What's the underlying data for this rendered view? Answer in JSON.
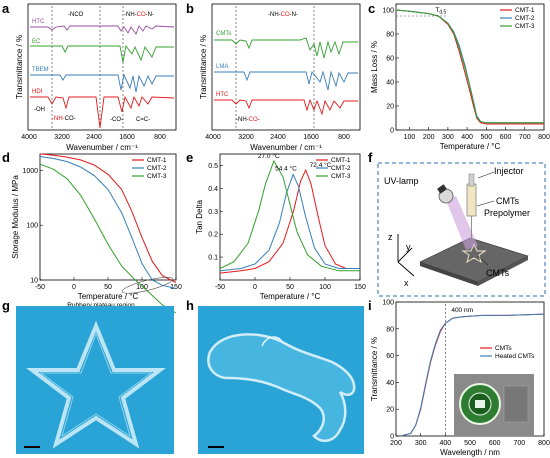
{
  "colors": {
    "cmt1": "#e41a1c",
    "cmt2": "#377eb8",
    "cmt3": "#33a02c",
    "purple": "#984ea3",
    "dash_border": "#2b6cb0",
    "water": "#2aa3d6"
  },
  "panels": {
    "a": {
      "label": "a"
    },
    "b": {
      "label": "b"
    },
    "c": {
      "label": "c"
    },
    "d": {
      "label": "d"
    },
    "e": {
      "label": "e"
    },
    "f": {
      "label": "f"
    },
    "g": {
      "label": "g"
    },
    "h": {
      "label": "h"
    },
    "i": {
      "label": "i"
    }
  },
  "chart_data": [
    {
      "id": "a",
      "type": "line",
      "xlabel": "Wavenumber / cm⁻¹",
      "ylabel": "Transmittance / %",
      "xlim": [
        4000,
        400
      ],
      "xticks": [
        4000,
        3200,
        2400,
        1600,
        800
      ],
      "series": [
        {
          "name": "HTC",
          "color": "#984ea3"
        },
        {
          "name": "EC",
          "color": "#33a02c"
        },
        {
          "name": "TBEM",
          "color": "#377eb8"
        },
        {
          "name": "HDI",
          "color": "#e41a1c"
        }
      ],
      "annotations": {
        "nco": "-NCO",
        "nh_co_n_pre": "-NH-",
        "nh_co_n_mid": "CO",
        "nh_co_n_post": "-N-",
        "oh": "-OH",
        "nh_co_pre": "-NH-",
        "nh_co_post": "CO-",
        "co": "-CO-",
        "cc": "C=C-"
      }
    },
    {
      "id": "b",
      "type": "line",
      "xlabel": "Wavenumber / cm⁻¹",
      "ylabel": "Transmittance / %",
      "xlim": [
        4000,
        400
      ],
      "xticks": [
        4000,
        3200,
        2400,
        1600,
        800
      ],
      "series": [
        {
          "name": "CMTs",
          "color": "#33a02c"
        },
        {
          "name": "LMA",
          "color": "#377eb8"
        },
        {
          "name": "HTC",
          "color": "#e41a1c"
        }
      ],
      "annotations": {
        "top_pre": "-NH-",
        "top_mid": "CO",
        "top_post": "-N-",
        "bot_pre": "-NH-",
        "bot_mid": "CO",
        "bot_post": "-"
      }
    },
    {
      "id": "c",
      "type": "line",
      "xlabel": "Temperature / °C",
      "ylabel": "Mass Loss / %",
      "xlim": [
        30,
        800
      ],
      "ylim": [
        0,
        105
      ],
      "xticks": [
        100,
        200,
        300,
        400,
        500,
        600,
        700,
        800
      ],
      "yticks": [
        0,
        20,
        40,
        60,
        80,
        100
      ],
      "annotation": "T",
      "annotation_sub": "d,5",
      "series": [
        {
          "name": "CMT-1",
          "color": "#e41a1c",
          "x": [
            30,
            100,
            200,
            250,
            300,
            330,
            360,
            390,
            410,
            430,
            450,
            470,
            500,
            800
          ],
          "y": [
            100,
            99,
            97,
            95,
            88,
            80,
            65,
            47,
            35,
            22,
            10,
            6,
            5,
            5
          ]
        },
        {
          "name": "CMT-2",
          "color": "#377eb8",
          "x": [
            30,
            100,
            200,
            250,
            300,
            330,
            360,
            390,
            410,
            430,
            450,
            470,
            500,
            800
          ],
          "y": [
            100,
            99,
            97,
            95,
            89,
            82,
            70,
            53,
            40,
            26,
            12,
            7,
            6,
            6
          ]
        },
        {
          "name": "CMT-3",
          "color": "#33a02c",
          "x": [
            30,
            100,
            200,
            250,
            300,
            330,
            360,
            390,
            410,
            430,
            450,
            470,
            500,
            800
          ],
          "y": [
            100,
            99,
            97,
            95,
            89,
            81,
            68,
            51,
            39,
            25,
            11,
            7,
            6,
            6
          ]
        }
      ]
    },
    {
      "id": "d",
      "type": "line",
      "xlabel": "Temperature / °C",
      "ylabel": "Storage Modulus / MPa",
      "xlim": [
        -50,
        150
      ],
      "ylim_log": [
        1,
        3.3
      ],
      "xticks": [
        -50,
        0,
        50,
        100,
        150
      ],
      "yticks": [
        10,
        100,
        1000
      ],
      "ytick_labels": [
        "10",
        "100",
        "1000"
      ],
      "annotation": "Rubbery plateau region",
      "series": [
        {
          "name": "CMT-1",
          "color": "#e41a1c",
          "x": [
            -50,
            -30,
            -10,
            10,
            30,
            50,
            70,
            85,
            100,
            115,
            130,
            150
          ],
          "y": [
            2000,
            1900,
            1750,
            1550,
            1250,
            850,
            450,
            180,
            60,
            22,
            12,
            9
          ]
        },
        {
          "name": "CMT-2",
          "color": "#377eb8",
          "x": [
            -50,
            -30,
            -10,
            10,
            30,
            50,
            70,
            85,
            100,
            115,
            130,
            150
          ],
          "y": [
            1800,
            1650,
            1450,
            1150,
            800,
            450,
            170,
            60,
            20,
            10,
            8,
            7
          ]
        },
        {
          "name": "CMT-3",
          "color": "#33a02c",
          "x": [
            -50,
            -30,
            -10,
            10,
            30,
            50,
            70,
            90,
            110,
            130,
            150
          ],
          "y": [
            1300,
            1050,
            700,
            350,
            130,
            45,
            18,
            10,
            6,
            3.5,
            2.5
          ]
        }
      ]
    },
    {
      "id": "e",
      "type": "line",
      "xlabel": "Temperature / °C",
      "ylabel": "Tan Delta",
      "xlim": [
        -50,
        150
      ],
      "ylim": [
        0,
        0.55
      ],
      "xticks": [
        -50,
        0,
        50,
        100,
        150
      ],
      "yticks": [
        0.1,
        0.2,
        0.3,
        0.4,
        0.5
      ],
      "peak_labels": [
        "72.4 °C",
        "54.4 °C",
        "27.0 °C"
      ],
      "series": [
        {
          "name": "CMT-1",
          "color": "#e41a1c",
          "x": [
            -50,
            -20,
            0,
            20,
            40,
            55,
            65,
            72.4,
            80,
            90,
            100,
            115,
            130,
            150
          ],
          "y": [
            0.03,
            0.04,
            0.05,
            0.08,
            0.16,
            0.3,
            0.43,
            0.48,
            0.42,
            0.28,
            0.15,
            0.07,
            0.05,
            0.05
          ]
        },
        {
          "name": "CMT-2",
          "color": "#377eb8",
          "x": [
            -50,
            -20,
            0,
            20,
            35,
            45,
            54.4,
            62,
            72,
            85,
            100,
            120,
            150
          ],
          "y": [
            0.04,
            0.05,
            0.07,
            0.13,
            0.25,
            0.38,
            0.46,
            0.41,
            0.28,
            0.14,
            0.07,
            0.05,
            0.05
          ]
        },
        {
          "name": "CMT-3",
          "color": "#33a02c",
          "x": [
            -50,
            -30,
            -10,
            5,
            15,
            27,
            40,
            50,
            60,
            75,
            95,
            120,
            150
          ],
          "y": [
            0.05,
            0.08,
            0.16,
            0.3,
            0.42,
            0.52,
            0.45,
            0.33,
            0.21,
            0.11,
            0.06,
            0.04,
            0.04
          ]
        }
      ]
    },
    {
      "id": "i",
      "type": "line",
      "xlabel": "Wavelength / nm",
      "ylabel": "Transmittance / %",
      "xlim": [
        200,
        800
      ],
      "ylim": [
        0,
        100
      ],
      "xticks": [
        200,
        300,
        400,
        500,
        600,
        700,
        800
      ],
      "yticks": [
        0,
        20,
        40,
        60,
        80,
        100
      ],
      "annotation": "400 nm",
      "series": [
        {
          "name": "CMTs",
          "color": "#e41a1c",
          "x": [
            220,
            260,
            280,
            300,
            320,
            340,
            360,
            380,
            400,
            430,
            470,
            550,
            650,
            800
          ],
          "y": [
            0,
            2,
            8,
            20,
            38,
            55,
            68,
            78,
            84,
            88,
            89,
            90,
            90,
            91
          ]
        },
        {
          "name": "Heated CMTs",
          "color": "#377eb8",
          "x": [
            220,
            260,
            280,
            300,
            320,
            340,
            360,
            380,
            400,
            430,
            470,
            550,
            650,
            800
          ],
          "y": [
            0,
            2,
            8,
            21,
            39,
            56,
            69,
            79,
            84,
            88,
            89,
            90,
            90,
            91
          ]
        }
      ]
    }
  ],
  "schematic_f": {
    "uv_lamp": "UV-lamp",
    "injector": "Injector",
    "cmts_prepolymer_line1": "CMTs",
    "cmts_prepolymer_line2": "Prepolymer",
    "cmts": "CMTs",
    "axis_z": "z",
    "axis_y": "y",
    "axis_x": "x"
  }
}
